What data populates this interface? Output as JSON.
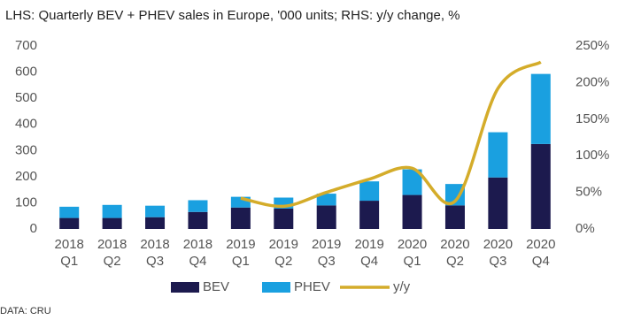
{
  "chart_data": {
    "type": "bar",
    "stacked": true,
    "title": "LHS: Quarterly BEV + PHEV sales in Europe, '000 units; RHS: y/y change, %",
    "source": "DATA: CRU",
    "categories": [
      [
        "2018",
        "Q1"
      ],
      [
        "2018",
        "Q2"
      ],
      [
        "2018",
        "Q3"
      ],
      [
        "2018",
        "Q4"
      ],
      [
        "2019",
        "Q1"
      ],
      [
        "2019",
        "Q2"
      ],
      [
        "2019",
        "Q3"
      ],
      [
        "2019",
        "Q4"
      ],
      [
        "2020",
        "Q1"
      ],
      [
        "2020",
        "Q2"
      ],
      [
        "2020",
        "Q3"
      ],
      [
        "2020",
        "Q4"
      ]
    ],
    "series": [
      {
        "name": "BEV",
        "type": "bar",
        "color": "#1c1a4e",
        "values": [
          42,
          42,
          45,
          65,
          82,
          78,
          90,
          108,
          130,
          90,
          197,
          325
        ]
      },
      {
        "name": "PHEV",
        "type": "bar",
        "color": "#1aa0e0",
        "values": [
          43,
          50,
          44,
          45,
          41,
          42,
          45,
          74,
          98,
          82,
          173,
          268
        ]
      },
      {
        "name": "y/y",
        "type": "line",
        "axis": "y2",
        "color": "#d4ac2a",
        "values": [
          null,
          null,
          null,
          null,
          42,
          31,
          50,
          68,
          83,
          38,
          192,
          228
        ]
      }
    ],
    "ylim": [
      0,
      700
    ],
    "yticks": [
      0,
      100,
      200,
      300,
      400,
      500,
      600,
      700
    ],
    "y2lim": [
      0,
      250
    ],
    "y2ticks": [
      {
        "value": 0,
        "label": "0%"
      },
      {
        "value": 50,
        "label": "50%"
      },
      {
        "value": 100,
        "label": "100%"
      },
      {
        "value": 150,
        "label": "150%"
      },
      {
        "value": 200,
        "label": "200%"
      },
      {
        "value": 250,
        "label": "250%"
      }
    ],
    "grid": false,
    "legend": "bottom"
  }
}
